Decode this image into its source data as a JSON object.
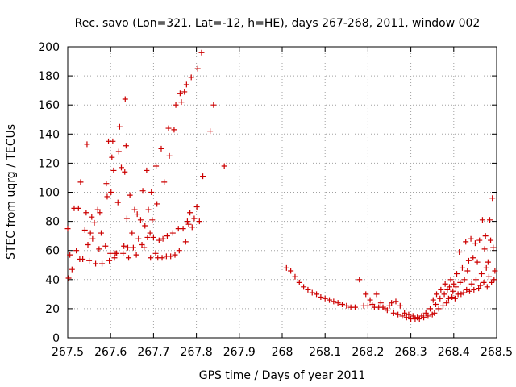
{
  "chart_data": {
    "type": "scatter",
    "title": "Rec. savo (Lon=321, Lat=-12, h=HE), days 267-268, 2011, window 002",
    "xlabel": "GPS time / Days of year 2011",
    "ylabel": "STEC from uqrg / TECUs",
    "xlim": [
      267.5,
      268.5
    ],
    "ylim": [
      0,
      200
    ],
    "x_ticks": [
      267.5,
      267.6,
      267.7,
      267.8,
      267.9,
      268,
      268.1,
      268.2,
      268.3,
      268.4,
      268.5
    ],
    "x_tick_labels": [
      "267.5",
      "267.6",
      "267.7",
      "267.8",
      "267.9",
      "268",
      "268.1",
      "268.2",
      "268.3",
      "268.4",
      "268.5"
    ],
    "y_ticks": [
      0,
      20,
      40,
      60,
      80,
      100,
      120,
      140,
      160,
      180,
      200
    ],
    "y_tick_labels": [
      "0",
      "20",
      "40",
      "60",
      "80",
      "100",
      "120",
      "140",
      "160",
      "180",
      "200"
    ],
    "grid": true,
    "marker": "plus",
    "color": "#cc0000",
    "points": [
      [
        267.5,
        75
      ],
      [
        267.502,
        41
      ],
      [
        267.505,
        57
      ],
      [
        267.51,
        47
      ],
      [
        267.515,
        89
      ],
      [
        267.52,
        60
      ],
      [
        267.525,
        89
      ],
      [
        267.528,
        54
      ],
      [
        267.53,
        107
      ],
      [
        267.535,
        54
      ],
      [
        267.54,
        74
      ],
      [
        267.543,
        86
      ],
      [
        267.545,
        133
      ],
      [
        267.547,
        64
      ],
      [
        267.55,
        53
      ],
      [
        267.553,
        72
      ],
      [
        267.556,
        83
      ],
      [
        267.558,
        68
      ],
      [
        267.562,
        79
      ],
      [
        267.565,
        51
      ],
      [
        267.57,
        88
      ],
      [
        267.573,
        61
      ],
      [
        267.575,
        86
      ],
      [
        267.578,
        72
      ],
      [
        267.58,
        51
      ],
      [
        267.588,
        63
      ],
      [
        267.59,
        106
      ],
      [
        267.592,
        97
      ],
      [
        267.595,
        135
      ],
      [
        267.597,
        53
      ],
      [
        267.599,
        58
      ],
      [
        267.601,
        100
      ],
      [
        267.603,
        124
      ],
      [
        267.605,
        135
      ],
      [
        267.607,
        115
      ],
      [
        267.609,
        55
      ],
      [
        267.611,
        58
      ],
      [
        267.614,
        58
      ],
      [
        267.617,
        93
      ],
      [
        267.619,
        128
      ],
      [
        267.621,
        145
      ],
      [
        267.625,
        117
      ],
      [
        267.629,
        58
      ],
      [
        267.631,
        63
      ],
      [
        267.633,
        114
      ],
      [
        267.634,
        164
      ],
      [
        267.636,
        132
      ],
      [
        267.638,
        82
      ],
      [
        267.64,
        62
      ],
      [
        267.642,
        55
      ],
      [
        267.645,
        98
      ],
      [
        267.65,
        72
      ],
      [
        267.653,
        62
      ],
      [
        267.656,
        88
      ],
      [
        267.66,
        57
      ],
      [
        267.662,
        85
      ],
      [
        267.665,
        68
      ],
      [
        267.67,
        81
      ],
      [
        267.673,
        64
      ],
      [
        267.675,
        101
      ],
      [
        267.678,
        62
      ],
      [
        267.68,
        77
      ],
      [
        267.684,
        115
      ],
      [
        267.686,
        69
      ],
      [
        267.688,
        88
      ],
      [
        267.692,
        72
      ],
      [
        267.693,
        55
      ],
      [
        267.695,
        100
      ],
      [
        267.697,
        81
      ],
      [
        267.7,
        69
      ],
      [
        267.705,
        58
      ],
      [
        267.706,
        118
      ],
      [
        267.708,
        92
      ],
      [
        267.71,
        55
      ],
      [
        267.713,
        67
      ],
      [
        267.718,
        130
      ],
      [
        267.72,
        55
      ],
      [
        267.722,
        68
      ],
      [
        267.725,
        107
      ],
      [
        267.73,
        56
      ],
      [
        267.732,
        70
      ],
      [
        267.735,
        144
      ],
      [
        267.737,
        125
      ],
      [
        267.74,
        56
      ],
      [
        267.745,
        72
      ],
      [
        267.748,
        143
      ],
      [
        267.75,
        57
      ],
      [
        267.752,
        160
      ],
      [
        267.758,
        75
      ],
      [
        267.76,
        60
      ],
      [
        267.762,
        168
      ],
      [
        267.765,
        162
      ],
      [
        267.769,
        75
      ],
      [
        267.772,
        169
      ],
      [
        267.775,
        66
      ],
      [
        267.777,
        174
      ],
      [
        267.779,
        80
      ],
      [
        267.782,
        78
      ],
      [
        267.785,
        86
      ],
      [
        267.788,
        179
      ],
      [
        267.79,
        76
      ],
      [
        267.795,
        82
      ],
      [
        267.801,
        90
      ],
      [
        267.803,
        185
      ],
      [
        267.807,
        80
      ],
      [
        267.812,
        196
      ],
      [
        267.815,
        111
      ],
      [
        267.832,
        142
      ],
      [
        267.84,
        160
      ],
      [
        267.865,
        118
      ],
      [
        268.01,
        48
      ],
      [
        268.02,
        46
      ],
      [
        268.03,
        42
      ],
      [
        268.04,
        38
      ],
      [
        268.05,
        35
      ],
      [
        268.06,
        33
      ],
      [
        268.07,
        31
      ],
      [
        268.08,
        30
      ],
      [
        268.09,
        28
      ],
      [
        268.1,
        27
      ],
      [
        268.11,
        26
      ],
      [
        268.12,
        25
      ],
      [
        268.13,
        24
      ],
      [
        268.14,
        23
      ],
      [
        268.15,
        22
      ],
      [
        268.16,
        21
      ],
      [
        268.17,
        21
      ],
      [
        268.18,
        40
      ],
      [
        268.19,
        22
      ],
      [
        268.195,
        30
      ],
      [
        268.2,
        22
      ],
      [
        268.205,
        26
      ],
      [
        268.21,
        23
      ],
      [
        268.215,
        21
      ],
      [
        268.22,
        30
      ],
      [
        268.225,
        21
      ],
      [
        268.23,
        24
      ],
      [
        268.235,
        21
      ],
      [
        268.24,
        20
      ],
      [
        268.245,
        19
      ],
      [
        268.25,
        22
      ],
      [
        268.255,
        24
      ],
      [
        268.26,
        17
      ],
      [
        268.265,
        25
      ],
      [
        268.27,
        16
      ],
      [
        268.275,
        22
      ],
      [
        268.28,
        15
      ],
      [
        268.285,
        17
      ],
      [
        268.29,
        14
      ],
      [
        268.295,
        16
      ],
      [
        268.3,
        13
      ],
      [
        268.305,
        15
      ],
      [
        268.31,
        13
      ],
      [
        268.315,
        14
      ],
      [
        268.32,
        13
      ],
      [
        268.325,
        15
      ],
      [
        268.33,
        14
      ],
      [
        268.335,
        17
      ],
      [
        268.34,
        15
      ],
      [
        268.345,
        20
      ],
      [
        268.35,
        16
      ],
      [
        268.352,
        26
      ],
      [
        268.355,
        17
      ],
      [
        268.358,
        23
      ],
      [
        268.36,
        30
      ],
      [
        268.365,
        20
      ],
      [
        268.368,
        27
      ],
      [
        268.37,
        33
      ],
      [
        268.375,
        22
      ],
      [
        268.378,
        30
      ],
      [
        268.38,
        37
      ],
      [
        268.383,
        24
      ],
      [
        268.385,
        33
      ],
      [
        268.388,
        27
      ],
      [
        268.39,
        35
      ],
      [
        268.393,
        40
      ],
      [
        268.396,
        28
      ],
      [
        268.398,
        32
      ],
      [
        268.4,
        37
      ],
      [
        268.403,
        27
      ],
      [
        268.405,
        35
      ],
      [
        268.407,
        44
      ],
      [
        268.41,
        30
      ],
      [
        268.413,
        59
      ],
      [
        268.415,
        38
      ],
      [
        268.417,
        30
      ],
      [
        268.42,
        48
      ],
      [
        268.423,
        31
      ],
      [
        268.425,
        40
      ],
      [
        268.428,
        66
      ],
      [
        268.43,
        33
      ],
      [
        268.432,
        46
      ],
      [
        268.435,
        53
      ],
      [
        268.437,
        32
      ],
      [
        268.44,
        68
      ],
      [
        268.442,
        37
      ],
      [
        268.445,
        55
      ],
      [
        268.447,
        33
      ],
      [
        268.45,
        65
      ],
      [
        268.452,
        40
      ],
      [
        268.455,
        52
      ],
      [
        268.458,
        34
      ],
      [
        268.46,
        67
      ],
      [
        268.462,
        36
      ],
      [
        268.465,
        44
      ],
      [
        268.467,
        81
      ],
      [
        268.47,
        38
      ],
      [
        268.472,
        61
      ],
      [
        268.474,
        70
      ],
      [
        268.476,
        48
      ],
      [
        268.478,
        35
      ],
      [
        268.48,
        52
      ],
      [
        268.482,
        42
      ],
      [
        268.484,
        81
      ],
      [
        268.486,
        67
      ],
      [
        268.488,
        38
      ],
      [
        268.49,
        96
      ],
      [
        268.492,
        62
      ],
      [
        268.494,
        40
      ],
      [
        268.496,
        46
      ]
    ]
  }
}
